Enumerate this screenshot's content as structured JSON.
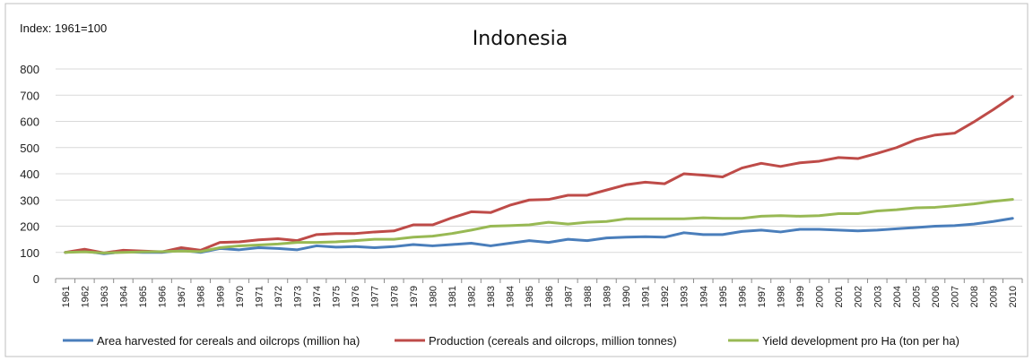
{
  "chart_data": {
    "type": "line",
    "title": "Indonesia",
    "note": "Index: 1961=100",
    "xlabel": "",
    "ylabel": "",
    "ylim": [
      0,
      800
    ],
    "yticks": [
      0,
      100,
      200,
      300,
      400,
      500,
      600,
      700,
      800
    ],
    "grid": true,
    "legend_position": "bottom",
    "x": [
      "1961",
      "1962",
      "1963",
      "1964",
      "1965",
      "1966",
      "1967",
      "1968",
      "1969",
      "1970",
      "1971",
      "1972",
      "1973",
      "1974",
      "1975",
      "1976",
      "1977",
      "1978",
      "1979",
      "1980",
      "1981",
      "1982",
      "1983",
      "1984",
      "1985",
      "1986",
      "1987",
      "1988",
      "1989",
      "1990",
      "1991",
      "1992",
      "1993",
      "1994",
      "1995",
      "1996",
      "1997",
      "1998",
      "1999",
      "2000",
      "2001",
      "2002",
      "2003",
      "2004",
      "2005",
      "2006",
      "2007",
      "2008",
      "2009",
      "2010"
    ],
    "series": [
      {
        "name": "Area harvested for cereals and oilcrops (million ha)",
        "color": "#4a7ebb",
        "values": [
          100,
          105,
          95,
          102,
          100,
          100,
          108,
          100,
          115,
          110,
          118,
          115,
          110,
          125,
          120,
          122,
          118,
          122,
          130,
          125,
          130,
          135,
          125,
          135,
          145,
          138,
          150,
          145,
          155,
          158,
          160,
          158,
          175,
          168,
          168,
          180,
          185,
          178,
          188,
          188,
          185,
          182,
          185,
          190,
          195,
          200,
          202,
          208,
          218,
          230
        ]
      },
      {
        "name": "Production (cereals and oilcrops, million tonnes)",
        "color": "#be4b48",
        "values": [
          100,
          112,
          98,
          108,
          105,
          102,
          118,
          108,
          138,
          140,
          148,
          152,
          145,
          168,
          172,
          172,
          178,
          182,
          205,
          205,
          232,
          255,
          252,
          280,
          300,
          302,
          318,
          318,
          338,
          358,
          368,
          362,
          400,
          395,
          388,
          422,
          440,
          428,
          442,
          448,
          462,
          458,
          478,
          500,
          530,
          548,
          555,
          598,
          645,
          695
        ]
      },
      {
        "name": "Yield development pro Ha (ton per ha)",
        "color": "#98b954",
        "values": [
          100,
          102,
          98,
          100,
          102,
          103,
          105,
          103,
          118,
          125,
          128,
          132,
          138,
          138,
          140,
          145,
          150,
          150,
          158,
          162,
          172,
          185,
          200,
          202,
          205,
          215,
          208,
          215,
          218,
          228,
          228,
          228,
          228,
          232,
          230,
          230,
          238,
          240,
          238,
          240,
          248,
          248,
          258,
          263,
          270,
          272,
          278,
          285,
          295,
          302
        ]
      }
    ]
  }
}
